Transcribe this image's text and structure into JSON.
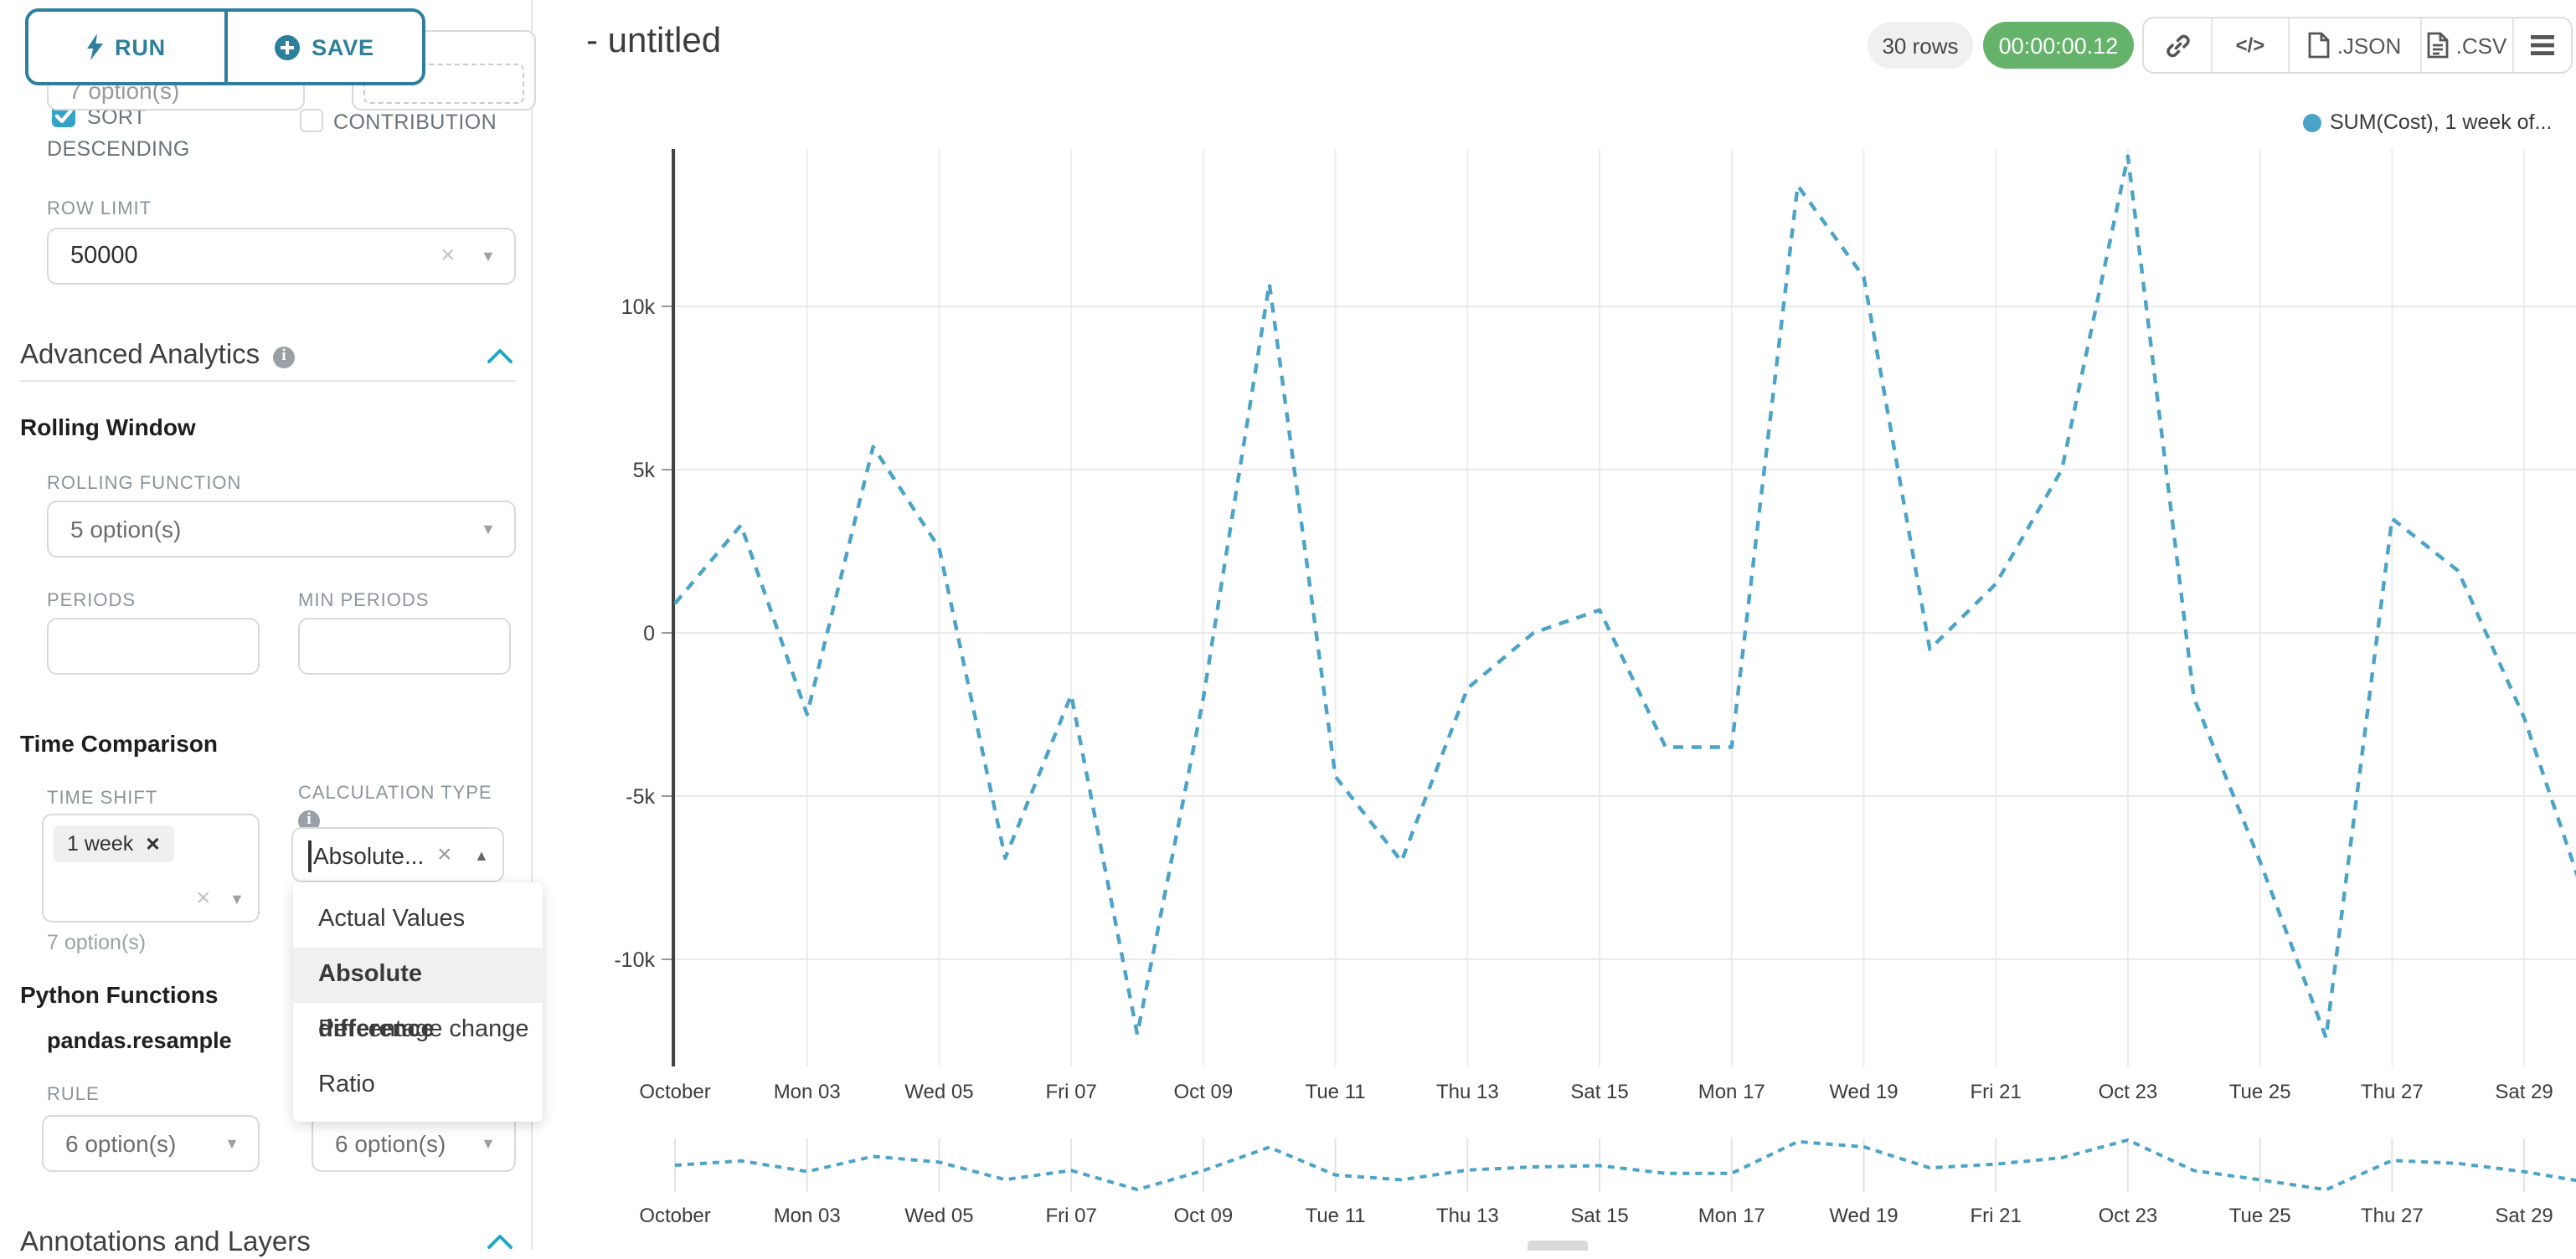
{
  "sidebar": {
    "run_label": "RUN",
    "save_label": "SAVE",
    "partial_select_value": "7 option(s)",
    "sort_descending": {
      "line1": "SORT",
      "line2": "DESCENDING",
      "checked": true
    },
    "contribution_label": "CONTRIBUTION",
    "row_limit": {
      "label": "ROW LIMIT",
      "value": "50000"
    },
    "advanced_analytics_title": "Advanced Analytics",
    "rolling_window": {
      "title": "Rolling Window",
      "rolling_function_label": "ROLLING FUNCTION",
      "rolling_function_value": "5 option(s)",
      "periods_label": "PERIODS",
      "min_periods_label": "MIN PERIODS"
    },
    "time_comparison": {
      "title": "Time Comparison",
      "time_shift_label": "TIME SHIFT",
      "time_shift_tag": "1 week",
      "time_shift_helper": "7 option(s)",
      "calculation_type_label": "CALCULATION TYPE",
      "calculation_type_value": "Absolute..."
    },
    "calc_dropdown": {
      "options": [
        "Actual Values",
        "Absolute difference",
        "Percentage change",
        "Ratio"
      ],
      "selected": "Absolute difference"
    },
    "python_functions": {
      "title": "Python Functions",
      "function_name": "pandas.resample",
      "rule_label": "RULE",
      "rule_value_1": "6 option(s)",
      "rule_value_2": "6 option(s)"
    },
    "annotations_title": "Annotations and Layers"
  },
  "header": {
    "title": "- untitled",
    "rows_badge": "30 rows",
    "timer": "00:00:00.12",
    "timer_color": "#65b36b",
    "export_json_label": ".JSON",
    "export_csv_label": ".CSV"
  },
  "chart_data": {
    "type": "line",
    "title": "",
    "legend": {
      "label": "SUM(Cost), 1 week of...",
      "position": "top-right"
    },
    "line_color": "#4ba3c7",
    "line_style": "dashed",
    "grid": true,
    "x_unit": "day of October 2022",
    "x": [
      1,
      2,
      3,
      4,
      5,
      6,
      7,
      8,
      9,
      10,
      11,
      12,
      13,
      14,
      15,
      16,
      17,
      18,
      19,
      20,
      21,
      22,
      23,
      24,
      25,
      26,
      27,
      28,
      29,
      30
    ],
    "series": [
      {
        "name": "SUM(Cost), 1 week of...",
        "values": [
          900,
          3300,
          -2500,
          5700,
          2600,
          -6900,
          -1900,
          -12300,
          -2000,
          10700,
          -4400,
          -7000,
          -1700,
          0,
          700,
          -3500,
          -3500,
          13700,
          10900,
          -500,
          1500,
          5000,
          14600,
          -2000,
          -7000,
          -12400,
          3500,
          1900,
          -2600,
          -8600
        ]
      }
    ],
    "x_ticks": [
      {
        "d": 1,
        "label": "October"
      },
      {
        "d": 3,
        "label": "Mon 03"
      },
      {
        "d": 5,
        "label": "Wed 05"
      },
      {
        "d": 7,
        "label": "Fri 07"
      },
      {
        "d": 9,
        "label": "Oct 09"
      },
      {
        "d": 11,
        "label": "Tue 11"
      },
      {
        "d": 13,
        "label": "Thu 13"
      },
      {
        "d": 15,
        "label": "Sat 15"
      },
      {
        "d": 17,
        "label": "Mon 17"
      },
      {
        "d": 19,
        "label": "Wed 19"
      },
      {
        "d": 21,
        "label": "Fri 21"
      },
      {
        "d": 23,
        "label": "Oct 23"
      },
      {
        "d": 25,
        "label": "Tue 25"
      },
      {
        "d": 27,
        "label": "Thu 27"
      },
      {
        "d": 29,
        "label": "Sat 29"
      }
    ],
    "y_ticks": [
      {
        "v": 10000,
        "label": "10k"
      },
      {
        "v": 5000,
        "label": "5k"
      },
      {
        "v": 0,
        "label": "0"
      },
      {
        "v": -5000,
        "label": "-5k"
      },
      {
        "v": -10000,
        "label": "-10k"
      }
    ],
    "ylim": [
      -13300,
      14800
    ],
    "has_mini_preview": true
  },
  "colors": {
    "accent_teal": "#2d7f9d",
    "bright_teal": "#20a7c9",
    "checkbox_blue": "#35a3c8"
  }
}
